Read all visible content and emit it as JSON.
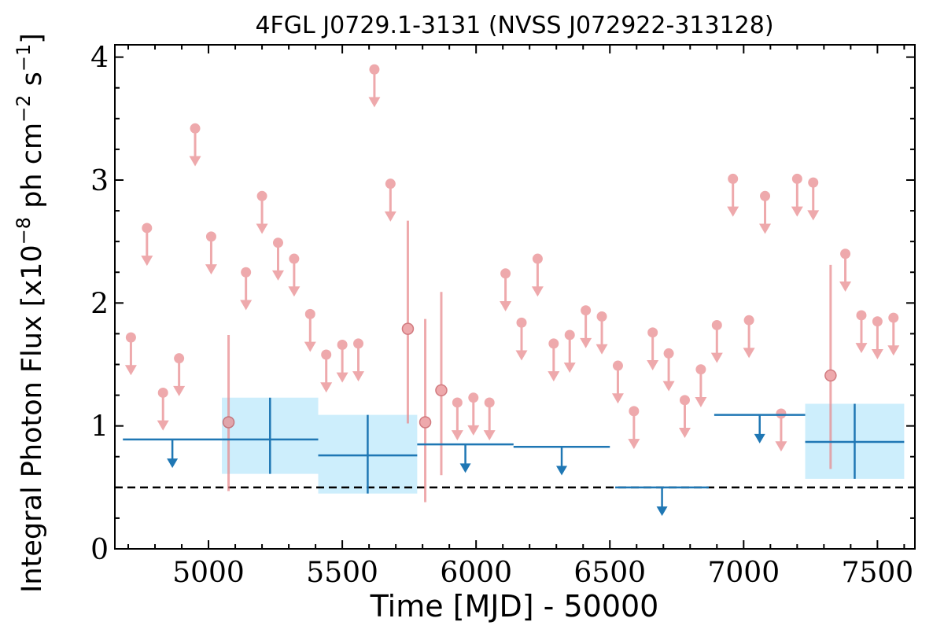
{
  "chart_data": {
    "type": "scatter",
    "title": "4FGL J0729.1-3131 (NVSS J072922-313128)",
    "xlabel": "Time [MJD] - 50000",
    "ylabel": {
      "prefix": "Integral Photon Flux [x10",
      "exp1": "−8",
      "mid": " ph cm",
      "exp2": "−2",
      "mid2": " s",
      "exp3": "−1",
      "suffix": "]"
    },
    "xlim": [
      4650,
      7640
    ],
    "ylim": [
      0,
      4.1
    ],
    "xticks": [
      5000,
      5500,
      6000,
      6500,
      7000,
      7500
    ],
    "yticks": [
      0,
      1,
      2,
      3,
      4
    ],
    "xtick_labels": [
      "5000",
      "5500",
      "6000",
      "6500",
      "7000",
      "7500"
    ],
    "ytick_labels": [
      "0",
      "1",
      "2",
      "3",
      "4"
    ],
    "reference_line": {
      "y": 0.5,
      "style": "dashed"
    },
    "colors": {
      "short_bins": "#e8898d",
      "long_bins": "#1f77b4",
      "long_bins_band": "#cdeefc",
      "reference": "#000000"
    },
    "short_bin_upper_limits": [
      {
        "x": 4710,
        "y": 1.72
      },
      {
        "x": 4770,
        "y": 2.61
      },
      {
        "x": 4830,
        "y": 1.27
      },
      {
        "x": 4890,
        "y": 1.55
      },
      {
        "x": 4950,
        "y": 3.42
      },
      {
        "x": 5010,
        "y": 2.54
      },
      {
        "x": 5140,
        "y": 2.25
      },
      {
        "x": 5200,
        "y": 2.87
      },
      {
        "x": 5260,
        "y": 2.49
      },
      {
        "x": 5320,
        "y": 2.36
      },
      {
        "x": 5380,
        "y": 1.91
      },
      {
        "x": 5440,
        "y": 1.58
      },
      {
        "x": 5500,
        "y": 1.66
      },
      {
        "x": 5560,
        "y": 1.67
      },
      {
        "x": 5620,
        "y": 3.9
      },
      {
        "x": 5680,
        "y": 2.97
      },
      {
        "x": 5930,
        "y": 1.19
      },
      {
        "x": 5990,
        "y": 1.23
      },
      {
        "x": 6050,
        "y": 1.19
      },
      {
        "x": 6110,
        "y": 2.24
      },
      {
        "x": 6170,
        "y": 1.84
      },
      {
        "x": 6230,
        "y": 2.36
      },
      {
        "x": 6290,
        "y": 1.67
      },
      {
        "x": 6350,
        "y": 1.74
      },
      {
        "x": 6410,
        "y": 1.94
      },
      {
        "x": 6470,
        "y": 1.89
      },
      {
        "x": 6530,
        "y": 1.49
      },
      {
        "x": 6590,
        "y": 1.12
      },
      {
        "x": 6660,
        "y": 1.76
      },
      {
        "x": 6720,
        "y": 1.59
      },
      {
        "x": 6780,
        "y": 1.21
      },
      {
        "x": 6840,
        "y": 1.46
      },
      {
        "x": 6900,
        "y": 1.82
      },
      {
        "x": 6960,
        "y": 3.01
      },
      {
        "x": 7020,
        "y": 1.86
      },
      {
        "x": 7080,
        "y": 2.87
      },
      {
        "x": 7140,
        "y": 1.1
      },
      {
        "x": 7200,
        "y": 3.01
      },
      {
        "x": 7260,
        "y": 2.98
      },
      {
        "x": 7380,
        "y": 2.4
      },
      {
        "x": 7440,
        "y": 1.9
      },
      {
        "x": 7500,
        "y": 1.85
      },
      {
        "x": 7560,
        "y": 1.88
      }
    ],
    "short_bin_detections": [
      {
        "x": 5075,
        "y": 1.03,
        "ylow": 0.47,
        "yhigh": 1.74
      },
      {
        "x": 5745,
        "y": 1.79,
        "ylow": 1.02,
        "yhigh": 2.67
      },
      {
        "x": 5810,
        "y": 1.03,
        "ylow": 0.38,
        "yhigh": 1.87
      },
      {
        "x": 5870,
        "y": 1.29,
        "ylow": 0.6,
        "yhigh": 2.09
      },
      {
        "x": 7325,
        "y": 1.41,
        "ylow": 0.65,
        "yhigh": 2.31
      }
    ],
    "long_bin_upper_limits": [
      {
        "xstart": 4680,
        "xend": 5050,
        "y": 0.89
      },
      {
        "xstart": 5780,
        "xend": 6140,
        "y": 0.85
      },
      {
        "xstart": 6140,
        "xend": 6500,
        "y": 0.83
      },
      {
        "xstart": 6520,
        "xend": 6870,
        "y": 0.5
      },
      {
        "xstart": 6890,
        "xend": 7230,
        "y": 1.09
      }
    ],
    "long_bin_detections": [
      {
        "xstart": 5050,
        "xend": 5410,
        "y": 0.89,
        "ylow": 0.61,
        "yhigh": 1.23
      },
      {
        "xstart": 5410,
        "xend": 5780,
        "y": 0.76,
        "ylow": 0.45,
        "yhigh": 1.09
      },
      {
        "xstart": 7230,
        "xend": 7600,
        "y": 0.87,
        "ylow": 0.57,
        "yhigh": 1.18
      }
    ]
  }
}
